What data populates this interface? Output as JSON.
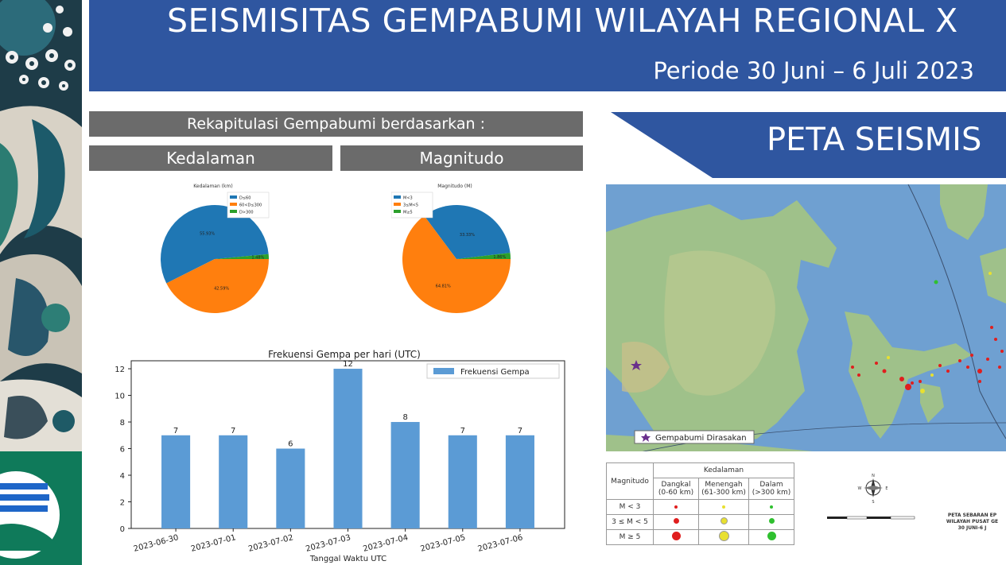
{
  "header": {
    "title": "SEISMISITAS GEMPABUMI WILAYAH REGIONAL X",
    "period": "Periode 30 Juni – 6 Juli 2023"
  },
  "recap": {
    "heading": "Rekapitulasi Gempabumi berdasarkan :",
    "depth_tab": "Kedalaman",
    "magnitude_tab": "Magnitudo"
  },
  "peta": {
    "title": "PETA SEISMIS"
  },
  "chart_data": [
    {
      "type": "pie",
      "title": "Kedalaman (km)",
      "labels": [
        "D≤60",
        "60<D≤300",
        "D>300"
      ],
      "values": [
        55.93,
        42.59,
        1.48
      ],
      "value_labels": [
        "55.93%",
        "42.59%",
        "1.48%"
      ],
      "colors": [
        "#1f77b4",
        "#ff7f0e",
        "#2ca02c"
      ],
      "legend": "top-left"
    },
    {
      "type": "pie",
      "title": "Magnitudo (M)",
      "labels": [
        "M<3",
        "3≤M<5",
        "M≥5"
      ],
      "values": [
        33.33,
        64.81,
        1.86
      ],
      "value_labels": [
        "33.33%",
        "64.81%",
        "1.86%"
      ],
      "colors": [
        "#1f77b4",
        "#ff7f0e",
        "#2ca02c"
      ],
      "legend": "top-left"
    },
    {
      "type": "bar",
      "title": "Frekuensi Gempa per hari (UTC)",
      "xlabel": "Tanggal Waktu UTC",
      "ylabel": "",
      "categories": [
        "2023-06-30",
        "2023-07-01",
        "2023-07-02",
        "2023-07-03",
        "2023-07-04",
        "2023-07-05",
        "2023-07-06"
      ],
      "series": [
        {
          "name": "Frekuensi Gempa",
          "values": [
            7,
            7,
            6,
            12,
            8,
            7,
            7
          ],
          "color": "#5b9bd5"
        }
      ],
      "yticks": [
        0,
        2,
        4,
        6,
        8,
        10,
        12
      ],
      "ylim": [
        0,
        12.6
      ],
      "legend": "top-right",
      "grid": false
    }
  ],
  "map_legend": {
    "felt_label": "Gempabumi Dirasakan",
    "magnitude_header": "Magnitudo",
    "depth_header": "Kedalaman",
    "depth_cols": [
      {
        "name": "Dangkal",
        "range": "(0-60 km)",
        "color": "#e01e1e"
      },
      {
        "name": "Menengah",
        "range": "(61-300 km)",
        "color": "#e8e030"
      },
      {
        "name": "Dalam",
        "range": "(>300 km)",
        "color": "#2fc02f"
      }
    ],
    "rows": [
      "M < 3",
      "3 ≤ M < 5",
      "M ≥ 5"
    ],
    "compass": [
      "N",
      "E",
      "S",
      "W"
    ],
    "footer_lines": [
      "PETA SEBARAN EP",
      "WILAYAH PUSAT GE",
      "30 JUNI-6 J"
    ]
  }
}
